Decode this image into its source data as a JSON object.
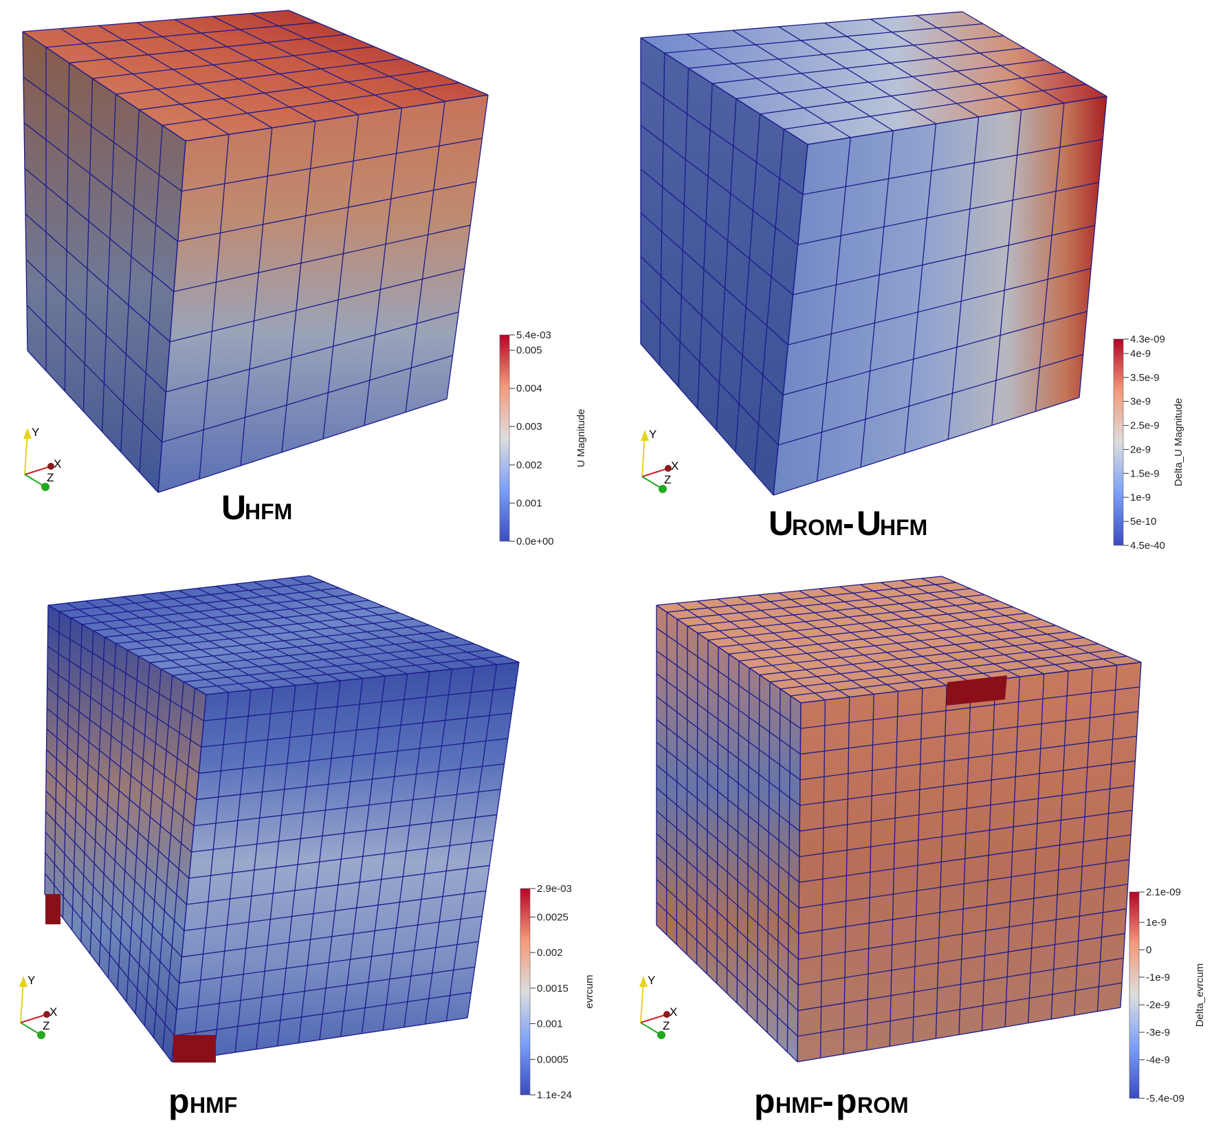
{
  "panels": [
    {
      "label_main": "U",
      "label_sub": "HFM",
      "label_main2": "",
      "label_sub2": "",
      "colorbar": {
        "title": "U Magnitude",
        "ticks": [
          "5.4e-03",
          "0.005",
          "0.004",
          "0.003",
          "0.002",
          "0.001",
          "0.0e+00"
        ],
        "tick_fracs": [
          1.0,
          0.926,
          0.741,
          0.556,
          0.37,
          0.185,
          0.0
        ]
      },
      "axes": [
        "Y",
        "X",
        "Z"
      ]
    },
    {
      "label_main": "U",
      "label_sub": "ROM",
      "label_main2": "U",
      "label_sub2": "HFM",
      "colorbar": {
        "title": "Delta_U Magnitude",
        "ticks": [
          "4.3e-09",
          "4e-9",
          "3.5e-9",
          "3e-9",
          "2.5e-9",
          "2e-9",
          "1.5e-9",
          "1e-9",
          "5e-10",
          "4.5e-40"
        ],
        "tick_fracs": [
          1.0,
          0.93,
          0.814,
          0.698,
          0.581,
          0.465,
          0.349,
          0.233,
          0.116,
          0.0
        ]
      },
      "axes": [
        "Y",
        "X",
        "Z"
      ]
    },
    {
      "label_main": "p",
      "label_sub": "HMF",
      "label_main2": "",
      "label_sub2": "",
      "colorbar": {
        "title": "evrcum",
        "ticks": [
          "2.9e-03",
          "0.0025",
          "0.002",
          "0.0015",
          "0.001",
          "0.0005",
          "1.1e-24"
        ],
        "tick_fracs": [
          1.0,
          0.862,
          0.69,
          0.517,
          0.345,
          0.172,
          0.0
        ]
      },
      "axes": [
        "Y",
        "X",
        "Z"
      ]
    },
    {
      "label_main": "p",
      "label_sub": "HMF",
      "label_main2": "p",
      "label_sub2": "ROM",
      "colorbar": {
        "title": "Delta_evrcum",
        "ticks": [
          "2.1e-09",
          "1e-9",
          "0",
          "-1e-9",
          "-2e-9",
          "-3e-9",
          "-4e-9",
          "-5.4e-09"
        ],
        "tick_fracs": [
          1.0,
          0.853,
          0.72,
          0.587,
          0.453,
          0.32,
          0.187,
          0.0
        ]
      },
      "axes": [
        "Y",
        "X",
        "Z"
      ]
    }
  ],
  "colors": {
    "cmap_low": "#3b4cc0",
    "cmap_mid": "#dddddd",
    "cmap_high": "#b40426",
    "mesh_line": "#1a1a8c",
    "axis_y": "#e6d21c",
    "axis_x": "#cc2222",
    "axis_z": "#22aa22"
  }
}
